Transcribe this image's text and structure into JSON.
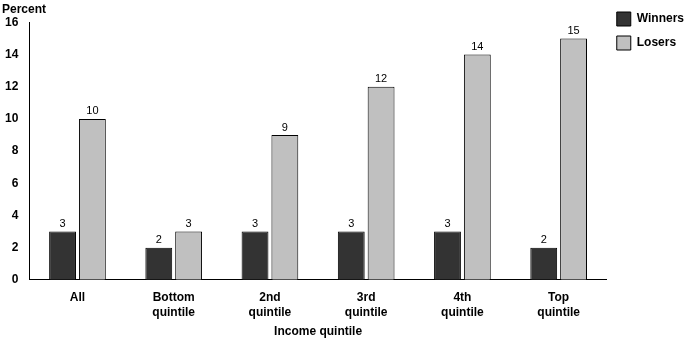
{
  "chart_data": {
    "type": "bar",
    "y_label": "Percent",
    "x_label": "Income quintile",
    "categories": [
      "All",
      "Bottom quintile",
      "2nd quintile",
      "3rd quintile",
      "4th quintile",
      "Top quintile"
    ],
    "series": [
      {
        "name": "Winners",
        "color": "#333333",
        "values": [
          3,
          2,
          3,
          3,
          3,
          2
        ]
      },
      {
        "name": "Losers",
        "color": "#c0c0c0",
        "values": [
          10,
          3,
          9,
          12,
          14,
          15
        ]
      }
    ],
    "ylim": [
      0,
      16
    ],
    "yticks": [
      0,
      2,
      4,
      6,
      8,
      10,
      12,
      14,
      16
    ],
    "grid": false,
    "legend": "right",
    "data_labels": true
  }
}
